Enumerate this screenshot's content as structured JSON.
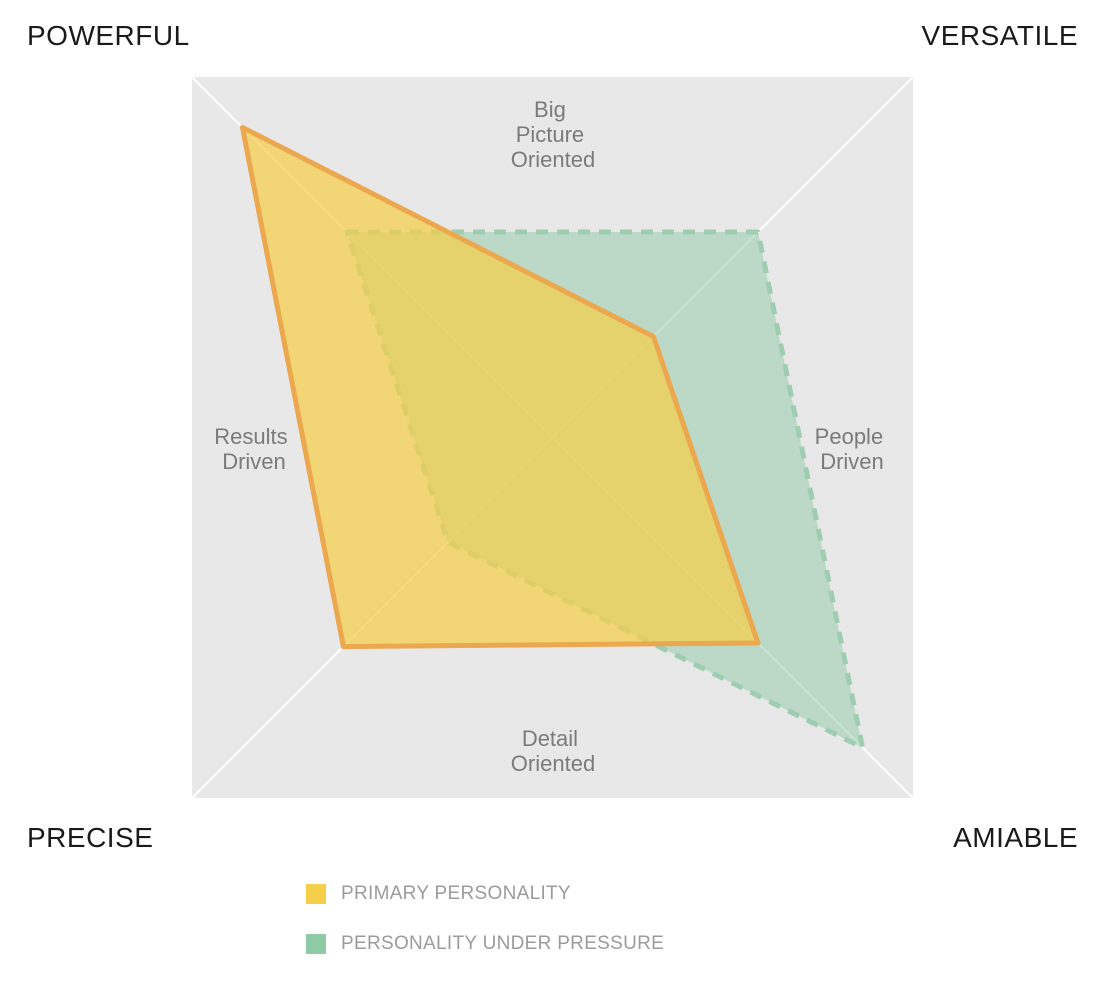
{
  "chart_data": {
    "type": "radar",
    "quadrants": {
      "top_left": "POWERFUL",
      "top_right": "VERSATILE",
      "bottom_left": "PRECISE",
      "bottom_right": "AMIABLE"
    },
    "axes": [
      {
        "key": "powerful",
        "lines": []
      },
      {
        "key": "versatile",
        "lines": []
      },
      {
        "key": "amiable",
        "lines": []
      },
      {
        "key": "precise",
        "lines": []
      }
    ],
    "side_labels": {
      "top": [
        "Big",
        "Picture",
        "Oriented"
      ],
      "right": [
        "People",
        "Driven"
      ],
      "bottom": [
        "Detail",
        "Oriented"
      ],
      "left": [
        "Results",
        "Driven"
      ]
    },
    "range": [
      0,
      1
    ],
    "series": [
      {
        "name": "PRIMARY PERSONALITY",
        "color": "#f5cf4a",
        "stroke": "#eba84e",
        "dashed": false,
        "values": {
          "powerful": 0.86,
          "versatile": 0.28,
          "amiable": 0.57,
          "precise": 0.58
        }
      },
      {
        "name": "PERSONALITY UNDER PRESSURE",
        "color": "#8fcaa6",
        "stroke": "#9fcdb1",
        "dashed": true,
        "values": {
          "powerful": 0.57,
          "versatile": 0.57,
          "amiable": 0.86,
          "precise": 0.29
        }
      }
    ],
    "grid": true
  }
}
